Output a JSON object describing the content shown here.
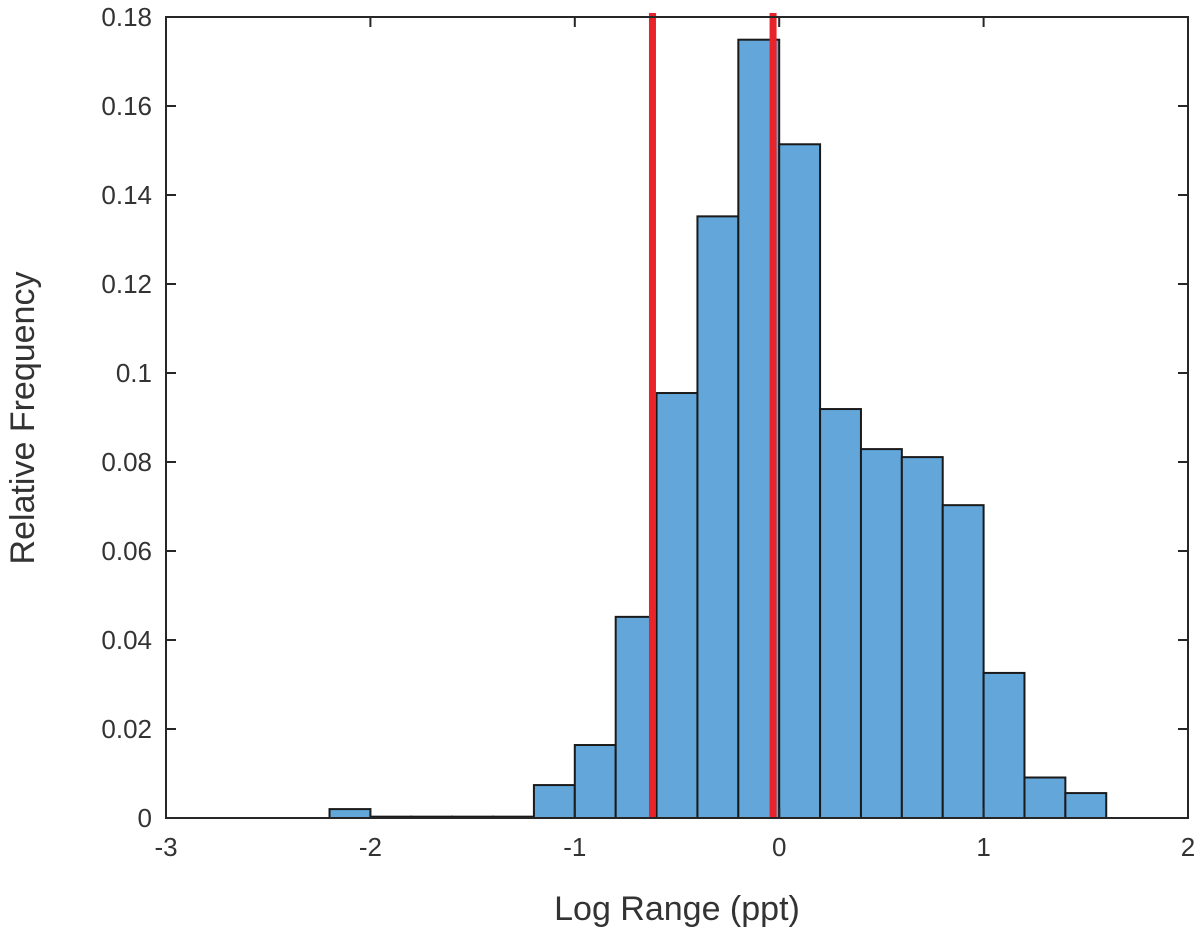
{
  "chart_data": {
    "type": "bar",
    "title": "",
    "xlabel": "Log Range (ppt)",
    "ylabel": "Relative Frequency",
    "xlim": [
      -3,
      2
    ],
    "ylim": [
      0,
      0.18
    ],
    "xticks": [
      -3,
      -2,
      -1,
      0,
      1,
      2
    ],
    "yticks": [
      0,
      0.02,
      0.04,
      0.06,
      0.08,
      0.1,
      0.12,
      0.14,
      0.16,
      0.18
    ],
    "xtick_labels": [
      "-3",
      "-2",
      "-1",
      "0",
      "1",
      "2"
    ],
    "ytick_labels": [
      "0",
      "0.02",
      "0.04",
      "0.06",
      "0.08",
      "0.1",
      "0.12",
      "0.14",
      "0.16",
      "0.18"
    ],
    "bin_width": 0.2,
    "bins": [
      {
        "start": -2.2,
        "value": 0.002
      },
      {
        "start": -2.0,
        "value": 0.0003
      },
      {
        "start": -1.8,
        "value": 0.0003
      },
      {
        "start": -1.6,
        "value": 0.0003
      },
      {
        "start": -1.4,
        "value": 0.0003
      },
      {
        "start": -1.2,
        "value": 0.0074
      },
      {
        "start": -1.0,
        "value": 0.0164
      },
      {
        "start": -0.8,
        "value": 0.0452
      },
      {
        "start": -0.6,
        "value": 0.0955
      },
      {
        "start": -0.4,
        "value": 0.1352
      },
      {
        "start": -0.2,
        "value": 0.1749
      },
      {
        "start": 0.0,
        "value": 0.1514
      },
      {
        "start": 0.2,
        "value": 0.0919
      },
      {
        "start": 0.4,
        "value": 0.0829
      },
      {
        "start": 0.6,
        "value": 0.0811
      },
      {
        "start": 0.8,
        "value": 0.0703
      },
      {
        "start": 1.0,
        "value": 0.0326
      },
      {
        "start": 1.2,
        "value": 0.0091
      },
      {
        "start": 1.4,
        "value": 0.0056
      }
    ],
    "reference_lines": [
      {
        "x": -0.62,
        "color": "#e8232a"
      },
      {
        "x": -0.03,
        "color": "#e8232a"
      }
    ],
    "bar_color": "#62a6da",
    "edge_color": "#1a1a1a",
    "grid": false
  }
}
